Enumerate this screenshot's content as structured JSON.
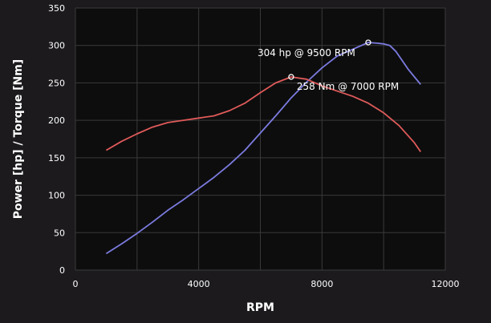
{
  "chart_data": {
    "type": "line",
    "title": "",
    "xlabel": "RPM",
    "ylabel": "Power [hp] / Torque [Nm]",
    "xlim": [
      0,
      12000
    ],
    "ylim": [
      0,
      350
    ],
    "xticks": [
      0,
      4000,
      8000,
      12000
    ],
    "yticks": [
      0,
      50,
      100,
      150,
      200,
      250,
      300,
      350
    ],
    "grid": true,
    "plot_background": "#0d0d0d",
    "grid_color": "#3a3a3a",
    "series": [
      {
        "key": "power",
        "color": "#7b7be0",
        "x": [
          1000,
          1500,
          2000,
          2500,
          3000,
          3500,
          4000,
          4500,
          5000,
          5500,
          6000,
          6500,
          7000,
          7500,
          8000,
          8500,
          9000,
          9500,
          9800,
          10000,
          10200,
          10400,
          10600,
          10800,
          11000,
          11200
        ],
        "y": [
          22,
          35,
          49,
          64,
          80,
          94,
          109,
          124,
          141,
          160,
          183,
          206,
          230,
          251,
          270,
          286,
          295,
          304,
          303,
          302,
          300,
          292,
          280,
          268,
          258,
          248
        ]
      },
      {
        "key": "torque",
        "color": "#e05a5a",
        "x": [
          1000,
          1500,
          2000,
          2500,
          3000,
          3500,
          4000,
          4500,
          5000,
          5500,
          6000,
          6500,
          7000,
          7500,
          8000,
          8500,
          9000,
          9500,
          10000,
          10500,
          11000,
          11200
        ],
        "y": [
          160,
          172,
          182,
          191,
          197,
          200,
          203,
          206,
          213,
          223,
          237,
          250,
          258,
          255,
          246,
          239,
          232,
          223,
          210,
          193,
          170,
          158
        ]
      }
    ],
    "annotations": [
      {
        "text": "304 hp @ 9500 RPM",
        "x": 9500,
        "y": 304,
        "marker": true
      },
      {
        "text": "258 Nm @ 7000 RPM",
        "x": 7000,
        "y": 258,
        "marker": true
      }
    ]
  }
}
